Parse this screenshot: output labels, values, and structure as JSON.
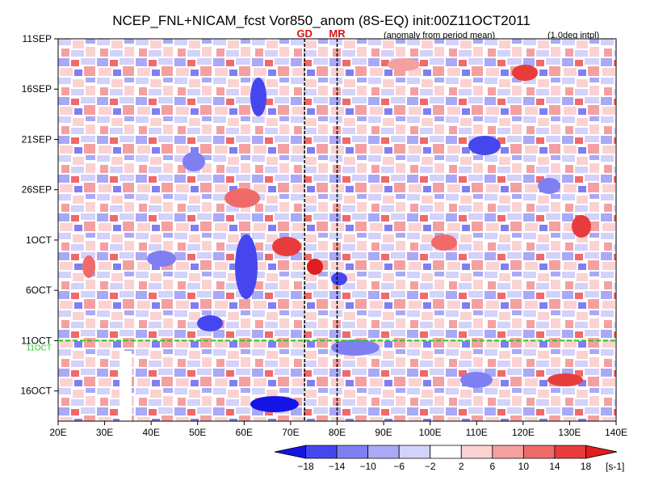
{
  "chart_data": {
    "type": "heatmap",
    "title": "NCEP_FNL+NICAM_fcst Vor850_anom (8S-EQ) init:00Z11OCT2011",
    "subtitle": "(anomaly from period mean)",
    "note": "(1.0deg intpl)",
    "x_axis": {
      "range": [
        "20E",
        "140E"
      ],
      "ticks": [
        "20E",
        "30E",
        "40E",
        "50E",
        "60E",
        "70E",
        "80E",
        "90E",
        "100E",
        "110E",
        "120E",
        "130E",
        "140E"
      ]
    },
    "y_axis": {
      "range": [
        "11SEP",
        "19OCT"
      ],
      "ticks": [
        "11SEP",
        "16SEP",
        "21SEP",
        "26SEP",
        "1OCT",
        "6OCT",
        "11OCT",
        "16OCT"
      ]
    },
    "markers": [
      {
        "label": "GD",
        "longitude": "73E",
        "color": "#dd1111"
      },
      {
        "label": "MR",
        "longitude": "80E",
        "color": "#dd1111"
      }
    ],
    "forecast_start": {
      "label": "11OCT",
      "date": "11OCT",
      "color": "#22cc22"
    },
    "colorbar": {
      "levels": [
        "−18",
        "−14",
        "−10",
        "−6",
        "−2",
        "2",
        "6",
        "10",
        "14",
        "18"
      ],
      "colors": [
        "#1414e6",
        "#4646ee",
        "#7f7ff2",
        "#a9a9f7",
        "#d2d2fb",
        "#ffffff",
        "#fbd2d2",
        "#f5a0a0",
        "#f06a6a",
        "#e83c3c",
        "#e01e1e"
      ],
      "unit": "[s-1]"
    }
  }
}
